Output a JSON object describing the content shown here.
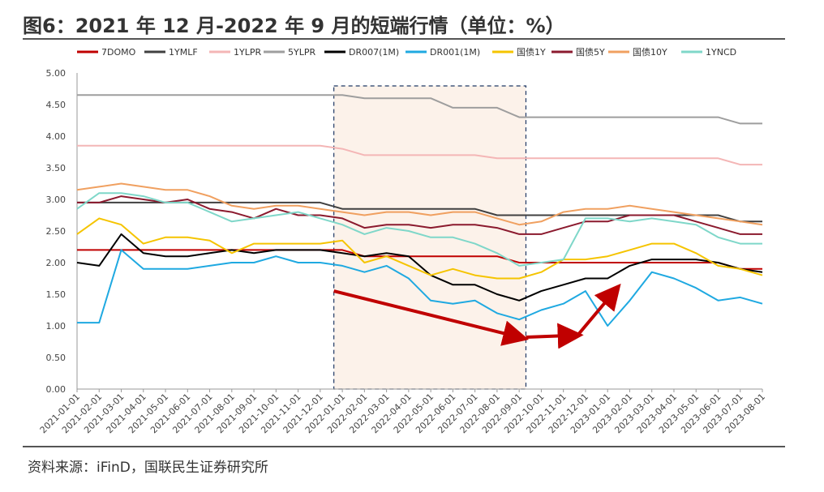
{
  "header": {
    "title": "图6：2021 年 12 月-2022 年 9 月的短端行情（单位：%）"
  },
  "footer": {
    "source": "资料来源：iFinD，国联民生证券研究所"
  },
  "chart_data": {
    "type": "line",
    "title": "图6：2021 年 12 月-2022 年 9 月的短端行情（单位：%）",
    "xlabel": "",
    "ylabel": "",
    "ylim": [
      0,
      5
    ],
    "yticks": [
      "0.00",
      "0.50",
      "1.00",
      "1.50",
      "2.00",
      "2.50",
      "3.00",
      "3.50",
      "4.00",
      "4.50",
      "5.00"
    ],
    "x": [
      "2021-01-01",
      "2021-02-01",
      "2021-03-01",
      "2021-04-01",
      "2021-05-01",
      "2021-06-01",
      "2021-07-01",
      "2021-08-01",
      "2021-09-01",
      "2021-10-01",
      "2021-11-01",
      "2021-12-01",
      "2022-01-01",
      "2022-02-01",
      "2022-03-01",
      "2022-04-01",
      "2022-05-01",
      "2022-06-01",
      "2022-07-01",
      "2022-08-01",
      "2022-09-01",
      "2022-10-01",
      "2022-11-01",
      "2022-12-01",
      "2023-01-01",
      "2023-02-01",
      "2023-03-01",
      "2023-04-01",
      "2023-05-01",
      "2023-06-01",
      "2023-07-01",
      "2023-08-01"
    ],
    "legend_position": "top",
    "highlight_region": {
      "from": "2021-12-20",
      "to": "2022-09-10"
    },
    "arrows": [
      {
        "from": [
          "2021-12-20",
          1.55
        ],
        "to": [
          "2022-09-01",
          0.82
        ]
      },
      {
        "from": [
          "2022-09-10",
          0.82
        ],
        "to": [
          "2022-11-15",
          0.85
        ]
      },
      {
        "from": [
          "2022-11-20",
          0.85
        ],
        "to": [
          "2023-01-10",
          1.55
        ]
      }
    ],
    "series": [
      {
        "name": "7DOMO",
        "color": "#c00000",
        "values": [
          2.2,
          2.2,
          2.2,
          2.2,
          2.2,
          2.2,
          2.2,
          2.2,
          2.2,
          2.2,
          2.2,
          2.2,
          2.2,
          2.1,
          2.1,
          2.1,
          2.1,
          2.1,
          2.1,
          2.1,
          2.0,
          2.0,
          2.0,
          2.0,
          2.0,
          2.0,
          2.0,
          2.0,
          2.0,
          2.0,
          1.9,
          1.9
        ]
      },
      {
        "name": "1YMLF",
        "color": "#404040",
        "values": [
          2.95,
          2.95,
          2.95,
          2.95,
          2.95,
          2.95,
          2.95,
          2.95,
          2.95,
          2.95,
          2.95,
          2.95,
          2.85,
          2.85,
          2.85,
          2.85,
          2.85,
          2.85,
          2.85,
          2.75,
          2.75,
          2.75,
          2.75,
          2.75,
          2.75,
          2.75,
          2.75,
          2.75,
          2.75,
          2.75,
          2.65,
          2.65
        ]
      },
      {
        "name": "1YLPR",
        "color": "#f4b6b6",
        "values": [
          3.85,
          3.85,
          3.85,
          3.85,
          3.85,
          3.85,
          3.85,
          3.85,
          3.85,
          3.85,
          3.85,
          3.85,
          3.8,
          3.7,
          3.7,
          3.7,
          3.7,
          3.7,
          3.7,
          3.65,
          3.65,
          3.65,
          3.65,
          3.65,
          3.65,
          3.65,
          3.65,
          3.65,
          3.65,
          3.65,
          3.55,
          3.55
        ]
      },
      {
        "name": "5YLPR",
        "color": "#9e9e9e",
        "values": [
          4.65,
          4.65,
          4.65,
          4.65,
          4.65,
          4.65,
          4.65,
          4.65,
          4.65,
          4.65,
          4.65,
          4.65,
          4.65,
          4.6,
          4.6,
          4.6,
          4.6,
          4.45,
          4.45,
          4.45,
          4.3,
          4.3,
          4.3,
          4.3,
          4.3,
          4.3,
          4.3,
          4.3,
          4.3,
          4.3,
          4.2,
          4.2
        ]
      },
      {
        "name": "DR007(1M)",
        "color": "#000000",
        "values": [
          2.0,
          1.95,
          2.45,
          2.15,
          2.1,
          2.1,
          2.15,
          2.2,
          2.15,
          2.2,
          2.2,
          2.2,
          2.15,
          2.1,
          2.15,
          2.1,
          1.8,
          1.65,
          1.65,
          1.5,
          1.4,
          1.55,
          1.65,
          1.75,
          1.75,
          1.95,
          2.05,
          2.05,
          2.05,
          2.0,
          1.9,
          1.85
        ]
      },
      {
        "name": "DR001(1M)",
        "color": "#1fa9e1",
        "values": [
          1.05,
          1.05,
          2.2,
          1.9,
          1.9,
          1.9,
          1.95,
          2.0,
          2.0,
          2.1,
          2.0,
          2.0,
          1.95,
          1.85,
          1.95,
          1.75,
          1.4,
          1.35,
          1.4,
          1.2,
          1.1,
          1.25,
          1.35,
          1.55,
          1.0,
          1.4,
          1.85,
          1.75,
          1.6,
          1.4,
          1.45,
          1.35
        ]
      },
      {
        "name": "国债1Y",
        "color": "#f5c400",
        "values": [
          2.45,
          2.7,
          2.6,
          2.3,
          2.4,
          2.4,
          2.35,
          2.15,
          2.3,
          2.3,
          2.3,
          2.3,
          2.35,
          2.0,
          2.1,
          1.95,
          1.8,
          1.9,
          1.8,
          1.75,
          1.75,
          1.85,
          2.05,
          2.05,
          2.1,
          2.2,
          2.3,
          2.3,
          2.15,
          1.95,
          1.9,
          1.8
        ]
      },
      {
        "name": "国债5Y",
        "color": "#8b1a2e",
        "values": [
          2.95,
          2.95,
          3.05,
          3.0,
          2.95,
          3.0,
          2.85,
          2.8,
          2.7,
          2.85,
          2.75,
          2.75,
          2.7,
          2.55,
          2.6,
          2.6,
          2.55,
          2.6,
          2.6,
          2.55,
          2.45,
          2.45,
          2.55,
          2.65,
          2.65,
          2.75,
          2.75,
          2.75,
          2.65,
          2.55,
          2.45,
          2.45
        ]
      },
      {
        "name": "国债10Y",
        "color": "#f0a060",
        "values": [
          3.15,
          3.2,
          3.25,
          3.2,
          3.15,
          3.15,
          3.05,
          2.9,
          2.85,
          2.9,
          2.9,
          2.85,
          2.8,
          2.75,
          2.8,
          2.8,
          2.75,
          2.8,
          2.8,
          2.7,
          2.6,
          2.65,
          2.8,
          2.85,
          2.85,
          2.9,
          2.85,
          2.8,
          2.75,
          2.7,
          2.65,
          2.6
        ]
      },
      {
        "name": "1YNCD",
        "color": "#7fd7c9",
        "values": [
          2.85,
          3.1,
          3.1,
          3.05,
          2.95,
          2.95,
          2.8,
          2.65,
          2.7,
          2.75,
          2.8,
          2.7,
          2.6,
          2.45,
          2.55,
          2.5,
          2.4,
          2.4,
          2.3,
          2.15,
          1.95,
          2.0,
          2.05,
          2.7,
          2.7,
          2.65,
          2.7,
          2.65,
          2.6,
          2.4,
          2.3,
          2.3
        ]
      }
    ]
  }
}
